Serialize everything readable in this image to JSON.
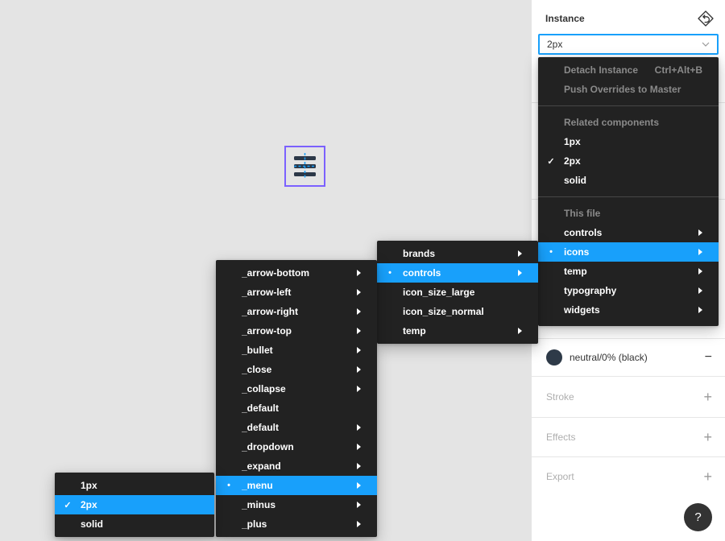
{
  "colors": {
    "accent_blue": "#18a0fb",
    "menu_background": "#222222",
    "menu_text": "#ffffff",
    "menu_muted_text": "#8a8a8a",
    "instance_selection_purple": "#7b61ff",
    "canvas_background": "#e4e4e4",
    "fill_swatch_navy": "#2e3a48"
  },
  "canvas": {
    "selected_instance": "hamburger-menu icon inside purple instance selection frame with blue dashed guides"
  },
  "sidebar": {
    "header": {
      "title": "Instance",
      "swap_icon": "swap-instance-icon"
    },
    "instance_select": {
      "value": "2px",
      "chevron": "chevron-down-icon"
    },
    "fill_row": {
      "swatch_color": "#2e3a48",
      "label": "neutral/0% (black)",
      "remove_label": "−"
    },
    "property_sections": [
      {
        "label": "Stroke",
        "add_label": "+"
      },
      {
        "label": "Effects",
        "add_label": "+"
      },
      {
        "label": "Export",
        "add_label": "+"
      }
    ],
    "help_label": "?"
  },
  "menus": {
    "instance_menu": {
      "groups": [
        {
          "items": [
            {
              "label": "Detach Instance",
              "shortcut": "Ctrl+Alt+B",
              "disabled": true
            },
            {
              "label": "Push Overrides to Master",
              "disabled": true
            }
          ]
        },
        {
          "header": "Related components",
          "items": [
            {
              "label": "1px"
            },
            {
              "label": "2px",
              "checked": true
            },
            {
              "label": "solid"
            }
          ]
        },
        {
          "header": "This file",
          "items": [
            {
              "label": "controls",
              "submenu": true
            },
            {
              "label": "icons",
              "submenu": true,
              "highlighted": true,
              "bullet": true
            },
            {
              "label": "temp",
              "submenu": true
            },
            {
              "label": "typography",
              "submenu": true
            },
            {
              "label": "widgets",
              "submenu": true
            }
          ]
        }
      ]
    },
    "icons_submenu": {
      "groups": [
        {
          "items": [
            {
              "label": "brands",
              "submenu": true
            },
            {
              "label": "controls",
              "submenu": true,
              "highlighted": true,
              "bullet": true
            },
            {
              "label": "icon_size_large"
            },
            {
              "label": "icon_size_normal"
            },
            {
              "label": "temp",
              "submenu": true
            }
          ]
        }
      ]
    },
    "controls_submenu": {
      "groups": [
        {
          "items": [
            {
              "label": "_arrow-bottom",
              "submenu": true
            },
            {
              "label": "_arrow-left",
              "submenu": true
            },
            {
              "label": "_arrow-right",
              "submenu": true
            },
            {
              "label": "_arrow-top",
              "submenu": true
            },
            {
              "label": "_bullet",
              "submenu": true
            },
            {
              "label": "_close",
              "submenu": true
            },
            {
              "label": "_collapse",
              "submenu": true
            },
            {
              "label": "_default"
            },
            {
              "label": "_default",
              "submenu": true
            },
            {
              "label": "_dropdown",
              "submenu": true
            },
            {
              "label": "_expand",
              "submenu": true
            },
            {
              "label": "_menu",
              "submenu": true,
              "highlighted": true,
              "bullet": true
            },
            {
              "label": "_minus",
              "submenu": true
            },
            {
              "label": "_plus",
              "submenu": true
            }
          ]
        }
      ]
    },
    "menu_variant_submenu": {
      "groups": [
        {
          "items": [
            {
              "label": "1px"
            },
            {
              "label": "2px",
              "checked": true,
              "highlighted": true
            },
            {
              "label": "solid"
            }
          ]
        }
      ]
    }
  }
}
